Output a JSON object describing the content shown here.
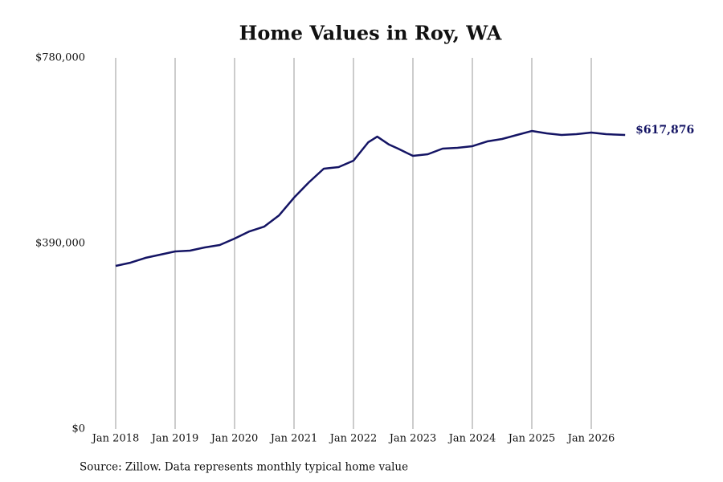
{
  "chart_data": {
    "type": "line",
    "title": "Home Values in Roy, WA",
    "source": "Source: Zillow. Data represents monthly typical home value",
    "x": [
      2018.0,
      2018.25,
      2018.5,
      2018.75,
      2019.0,
      2019.25,
      2019.5,
      2019.75,
      2020.0,
      2020.25,
      2020.5,
      2020.75,
      2021.0,
      2021.25,
      2021.5,
      2021.75,
      2022.0,
      2022.25,
      2022.4,
      2022.6,
      2022.75,
      2023.0,
      2023.25,
      2023.5,
      2023.75,
      2024.0,
      2024.25,
      2024.5,
      2024.75,
      2025.0,
      2025.25,
      2025.5,
      2025.75,
      2026.0,
      2026.25,
      2026.57
    ],
    "series": [
      {
        "color": "#141464",
        "values": [
          342700,
          349500,
          359600,
          366400,
          373100,
          374800,
          381600,
          386600,
          400100,
          415300,
          425400,
          449100,
          486200,
          518300,
          547000,
          550400,
          563900,
          602700,
          614500,
          597600,
          589200,
          574000,
          577400,
          589200,
          590900,
          594300,
          604400,
          609500,
          617900,
          626300,
          621300,
          617900,
          619600,
          623000,
          619600,
          617876
        ],
        "value_labels": [
          null,
          null,
          null,
          null,
          null,
          null,
          null,
          null,
          null,
          null,
          null,
          null,
          null,
          null,
          null,
          null,
          null,
          null,
          null,
          null,
          null,
          null,
          null,
          null,
          null,
          null,
          null,
          null,
          null,
          null,
          null,
          null,
          null,
          null,
          null,
          "$617,876"
        ]
      }
    ],
    "xlim": [
      2018.0,
      2026.57
    ],
    "xticks": [
      {
        "value": 2018,
        "label": "Jan 2018"
      },
      {
        "value": 2019,
        "label": "Jan 2019"
      },
      {
        "value": 2020,
        "label": "Jan 2020"
      },
      {
        "value": 2021,
        "label": "Jan 2021"
      },
      {
        "value": 2022,
        "label": "Jan 2022"
      },
      {
        "value": 2023,
        "label": "Jan 2023"
      },
      {
        "value": 2024,
        "label": "Jan 2024"
      },
      {
        "value": 2025,
        "label": "Jan 2025"
      },
      {
        "value": 2026,
        "label": "Jan 2026"
      }
    ],
    "ylim": [
      0,
      780000
    ],
    "yticks": [
      {
        "value": 0,
        "label": "$0"
      },
      {
        "value": 390000,
        "label": "$390,000"
      },
      {
        "value": 780000,
        "label": "$780,000"
      }
    ],
    "x_grid": true
  }
}
